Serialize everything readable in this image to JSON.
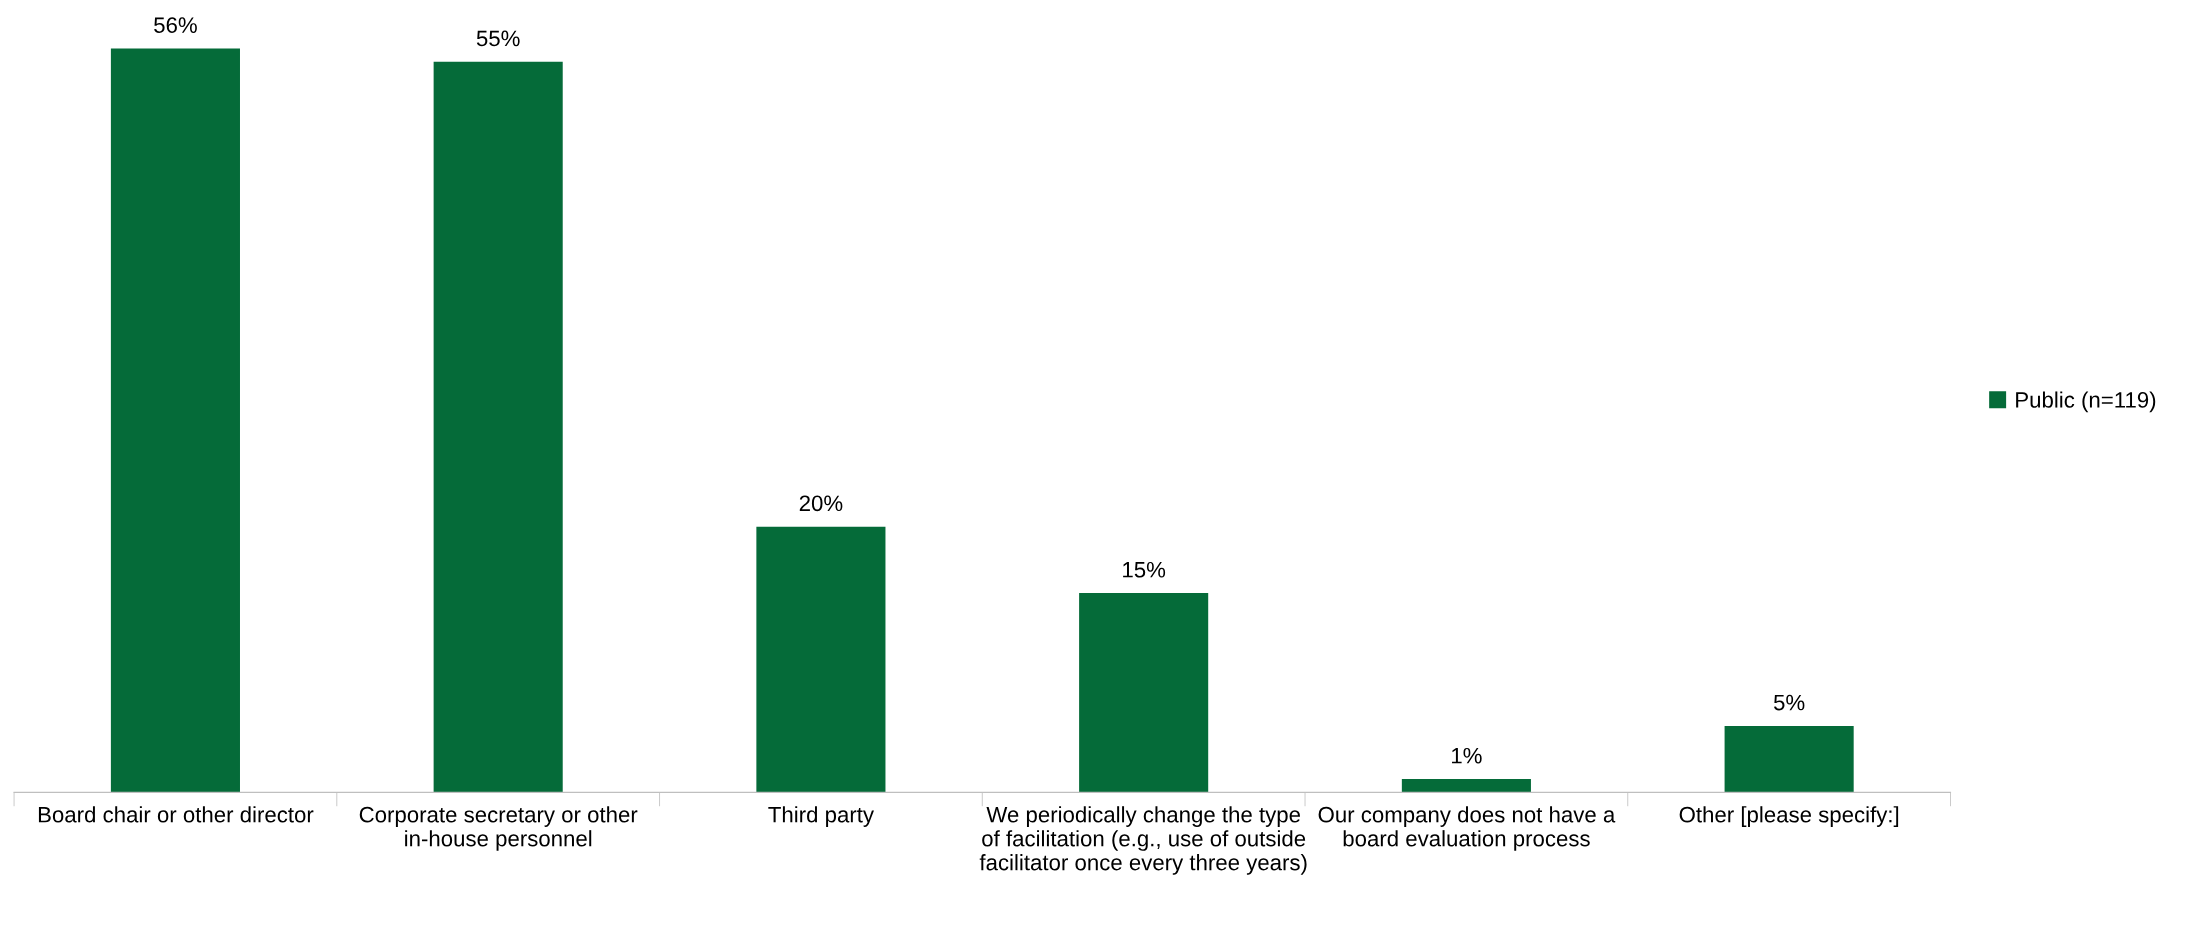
{
  "chart_data": {
    "type": "bar",
    "categories": [
      "Board chair or other director",
      "Corporate secretary or other in-house personnel",
      "Third party",
      "We periodically change the type of facilitation (e.g., use of outside facilitator once every three years)",
      "Our company does not have a board evaluation process",
      "Other [please specify:]"
    ],
    "series": [
      {
        "name": "Public (n=119)",
        "color": "#056b39",
        "values": [
          56,
          55,
          20,
          15,
          1,
          5
        ],
        "value_labels": [
          "56%",
          "55%",
          "20%",
          "15%",
          "1%",
          "5%"
        ]
      }
    ],
    "legend": "right",
    "grid": false
  }
}
